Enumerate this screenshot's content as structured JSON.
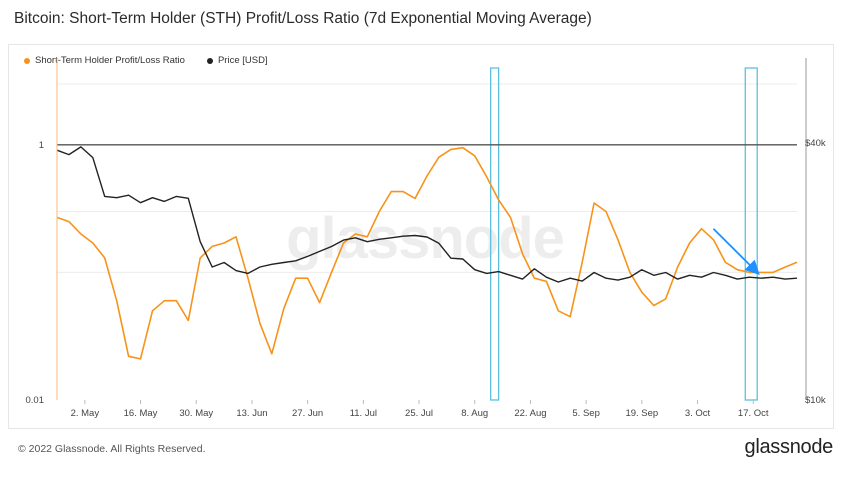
{
  "title": "Bitcoin: Short-Term Holder (STH) Profit/Loss Ratio (7d Exponential Moving Average)",
  "footer": {
    "copyright": "© 2022 Glassnode. All Rights Reserved.",
    "logo": "glassnode"
  },
  "watermark": "glassnode",
  "colors": {
    "ratio": "#f7931a",
    "price": "#222222",
    "highlight": "#5bc0de",
    "arrow": "#1e90ff",
    "reference": "#555555"
  },
  "chart_data": {
    "type": "line",
    "title": "Bitcoin: Short-Term Holder (STH) Profit/Loss Ratio (7d Exponential Moving Average)",
    "legend": [
      "Short-Term Holder Profit/Loss Ratio",
      "Price [USD]"
    ],
    "x_ticks": [
      "2. May",
      "16. May",
      "30. May",
      "13. Jun",
      "27. Jun",
      "11. Jul",
      "25. Jul",
      "8. Aug",
      "22. Aug",
      "5. Sep",
      "19. Sep",
      "3. Oct",
      "17. Oct"
    ],
    "y_left_ticks": [
      {
        "label": "1",
        "value": 1
      },
      {
        "label": "0.01",
        "value": 0.01
      }
    ],
    "y_left_scale": "log",
    "y_left_range": [
      0.01,
      4
    ],
    "y_right_ticks": [
      {
        "label": "$40k",
        "value": 40000
      },
      {
        "label": "$10k",
        "value": 10000
      }
    ],
    "y_right_scale": "log",
    "y_right_range": [
      10000,
      60000
    ],
    "reference_line": {
      "value": 1,
      "axis": "left"
    },
    "highlight_ranges": [
      [
        "12. Aug",
        "14. Aug"
      ],
      [
        "15. Oct",
        "18. Oct"
      ]
    ],
    "arrow": {
      "from": [
        "7. Oct",
        0.22
      ],
      "to": [
        "18. Oct",
        0.1
      ]
    },
    "x_days": [
      0,
      3,
      6,
      9,
      12,
      15,
      18,
      21,
      24,
      27,
      30,
      33,
      36,
      39,
      42,
      45,
      48,
      51,
      54,
      57,
      60,
      63,
      66,
      69,
      72,
      75,
      78,
      81,
      84,
      87,
      90,
      93,
      96,
      99,
      102,
      105,
      108,
      111,
      114,
      117,
      120,
      123,
      126,
      129,
      132,
      135,
      138,
      141,
      144,
      147,
      150,
      153,
      156,
      159,
      162,
      165,
      168,
      171,
      174,
      177,
      180,
      183,
      186
    ],
    "series": [
      {
        "name": "Short-Term Holder Profit/Loss Ratio",
        "values": [
          0.27,
          0.25,
          0.2,
          0.17,
          0.13,
          0.06,
          0.022,
          0.021,
          0.05,
          0.06,
          0.06,
          0.042,
          0.13,
          0.16,
          0.17,
          0.19,
          0.09,
          0.04,
          0.023,
          0.052,
          0.09,
          0.09,
          0.058,
          0.1,
          0.17,
          0.2,
          0.19,
          0.3,
          0.43,
          0.43,
          0.38,
          0.57,
          0.8,
          0.92,
          0.95,
          0.82,
          0.56,
          0.37,
          0.27,
          0.14,
          0.09,
          0.085,
          0.05,
          0.045,
          0.12,
          0.35,
          0.3,
          0.18,
          0.1,
          0.07,
          0.055,
          0.062,
          0.11,
          0.17,
          0.22,
          0.18,
          0.12,
          0.105,
          0.1,
          0.1,
          0.1,
          0.11,
          0.12
        ]
      },
      {
        "name": "Price [USD]",
        "values": [
          38500,
          37600,
          39200,
          37000,
          30000,
          29800,
          30200,
          29000,
          29800,
          29200,
          30000,
          29700,
          23500,
          20500,
          21000,
          20100,
          19800,
          20500,
          20800,
          21000,
          21200,
          21700,
          22300,
          22900,
          23700,
          24000,
          23500,
          23800,
          24000,
          24200,
          24300,
          24100,
          23300,
          21500,
          21400,
          20200,
          19800,
          20000,
          19600,
          19200,
          20300,
          19400,
          18900,
          19300,
          19000,
          19900,
          19300,
          19100,
          19400,
          20200,
          19600,
          19900,
          19200,
          19600,
          19400,
          19900,
          19600,
          19200,
          19400,
          19300,
          19400,
          19200,
          19300
        ]
      }
    ]
  }
}
